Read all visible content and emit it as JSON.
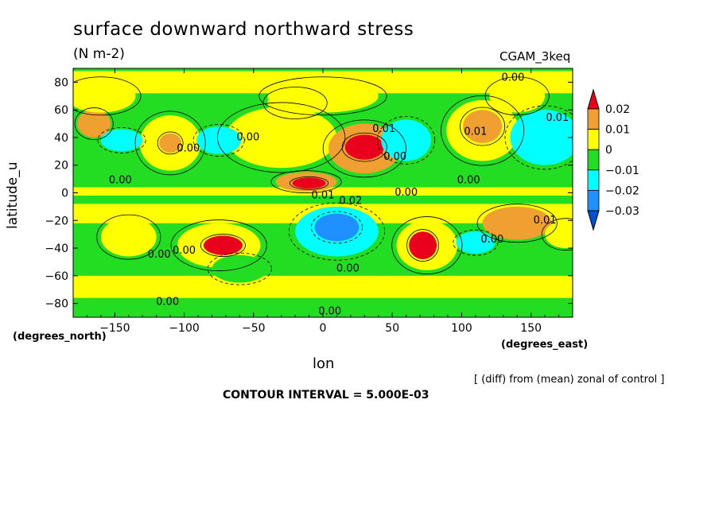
{
  "title": "surface downward northward stress",
  "units": "(N m-2)",
  "model_label": "CGAM_3keq",
  "note": "[ (diff) from (mean) zonal of control ]",
  "contour_interval": "CONTOUR INTERVAL = 5.000E-03",
  "chart_data": {
    "type": "heatmap",
    "title": "surface downward northward stress",
    "subtitle": "(N m-2)",
    "xlabel": "lon",
    "ylabel": "latitude_u",
    "xunit": "(degrees_east)",
    "yunit": "(degrees_north)",
    "xlim": [
      -180,
      180
    ],
    "ylim": [
      -90,
      90
    ],
    "xticks": [
      -150,
      -100,
      -50,
      0,
      50,
      100,
      150
    ],
    "yticks": [
      80,
      60,
      40,
      20,
      0,
      -20,
      -40,
      -60,
      -80
    ],
    "colorbar": {
      "levels": [
        0.02,
        0.01,
        0,
        -0.01,
        -0.02,
        -0.03
      ],
      "colors": [
        "#e8001c",
        "#f0a030",
        "#ffff00",
        "#22dd22",
        "#00ffff",
        "#1e90ff",
        "#0050d0"
      ]
    },
    "contour_labels": [
      {
        "text": "0.00",
        "lon": 137,
        "lat": 81
      },
      {
        "text": "0.01",
        "lon": 169,
        "lat": 52
      },
      {
        "text": "0.01",
        "lon": 110,
        "lat": 42
      },
      {
        "text": "0.01",
        "lon": 44,
        "lat": 44
      },
      {
        "text": "0.00",
        "lon": -54,
        "lat": 38
      },
      {
        "text": "0.00",
        "lon": -97,
        "lat": 30
      },
      {
        "text": "0.00",
        "lon": 52,
        "lat": 24
      },
      {
        "text": "0.00",
        "lon": -146,
        "lat": 7
      },
      {
        "text": "0.00",
        "lon": 105,
        "lat": 7
      },
      {
        "text": "0.00",
        "lon": 60,
        "lat": -2
      },
      {
        "text": "0.01",
        "lon": 0,
        "lat": -4
      },
      {
        "text": "0.02",
        "lon": 20,
        "lat": -8
      },
      {
        "text": "0.01",
        "lon": 160,
        "lat": -22
      },
      {
        "text": "0.00",
        "lon": 122,
        "lat": -36
      },
      {
        "text": "0.00",
        "lon": -118,
        "lat": -47
      },
      {
        "text": "0.00",
        "lon": -100,
        "lat": -44
      },
      {
        "text": "0.00",
        "lon": 18,
        "lat": -57
      },
      {
        "text": "0.00",
        "lon": -112,
        "lat": -81
      },
      {
        "text": "0.00",
        "lon": 5,
        "lat": -88
      }
    ]
  }
}
